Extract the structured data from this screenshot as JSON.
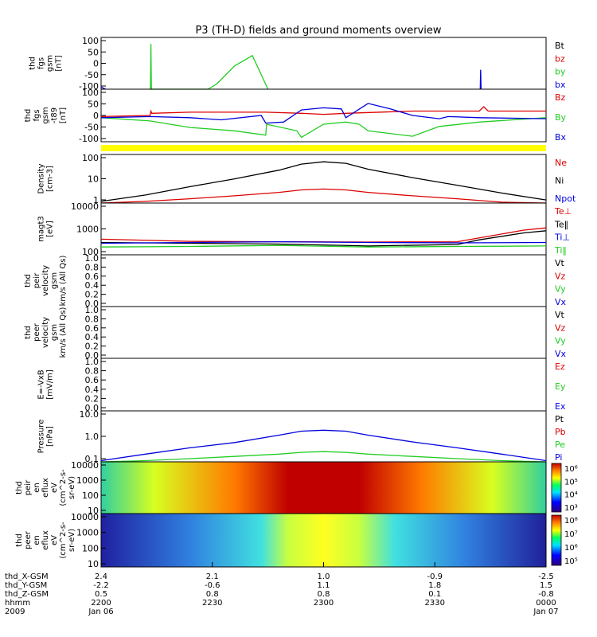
{
  "title": "P3 (TH-D) fields and ground moments overview",
  "colors": {
    "black": "#000000",
    "red": "#dd0000",
    "green": "#22cc22",
    "blue": "#0000dd",
    "yellow": "#ffff00"
  },
  "chart_data": [
    {
      "type": "line",
      "panel": "fgs",
      "ylabel": [
        "thd",
        "fgs",
        "gsm",
        "[nT]"
      ],
      "ylim": [
        -100,
        100
      ],
      "yticks": [
        "100",
        "50",
        "0",
        "-50",
        "-100"
      ],
      "legend": [
        {
          "name": "Bt",
          "color": "black"
        },
        {
          "name": "bz",
          "color": "red"
        },
        {
          "name": "by",
          "color": "green"
        },
        {
          "name": "bx",
          "color": "blue"
        }
      ],
      "series": [
        {
          "name": "by",
          "color": "green",
          "x": [
            0.11,
            0.24,
            0.26,
            0.3,
            0.34,
            0.375
          ],
          "y": [
            -100,
            -100,
            -80,
            -10,
            30,
            -100
          ]
        },
        {
          "name": "by-spike",
          "color": "green",
          "x": [
            0.111,
            0.112,
            0.113
          ],
          "y": [
            -100,
            75,
            -100
          ]
        },
        {
          "name": "bx-spike",
          "color": "blue",
          "x": [
            0.852,
            0.853,
            0.854
          ],
          "y": [
            -100,
            -25,
            -100
          ]
        },
        {
          "name": "bx-edge",
          "color": "blue",
          "x": [
            0.0,
            0.01
          ],
          "y": [
            -92,
            -100
          ]
        }
      ]
    },
    {
      "type": "line",
      "panel": "fgs-t89",
      "ylabel": [
        "thd",
        "fgs",
        "gsm",
        "-t89",
        "[nT]"
      ],
      "ylim": [
        -120,
        120
      ],
      "yticks": [
        "100",
        "50",
        "0",
        "-50",
        "-100"
      ],
      "legend": [
        {
          "name": "Bz",
          "color": "red"
        },
        {
          "name": "By",
          "color": "green"
        },
        {
          "name": "Bx",
          "color": "blue"
        }
      ],
      "series": [
        {
          "name": "Bz",
          "color": "red",
          "x": [
            0,
            0.11,
            0.112,
            0.114,
            0.2,
            0.37,
            0.45,
            0.5,
            0.55,
            0.7,
            0.85,
            0.86,
            0.87,
            1
          ],
          "y": [
            -5,
            0,
            20,
            10,
            15,
            15,
            10,
            5,
            10,
            20,
            20,
            40,
            20,
            20
          ]
        },
        {
          "name": "By",
          "color": "green",
          "x": [
            0,
            0.11,
            0.2,
            0.3,
            0.37,
            0.372,
            0.44,
            0.45,
            0.5,
            0.55,
            0.58,
            0.6,
            0.7,
            0.76,
            0.85,
            1
          ],
          "y": [
            -10,
            -25,
            -55,
            -70,
            -90,
            -40,
            -70,
            -100,
            -40,
            -30,
            -40,
            -70,
            -95,
            -50,
            -30,
            -10
          ]
        },
        {
          "name": "Bx",
          "color": "blue",
          "x": [
            0,
            0.11,
            0.2,
            0.27,
            0.36,
            0.37,
            0.41,
            0.45,
            0.5,
            0.54,
            0.55,
            0.6,
            0.65,
            0.7,
            0.76,
            0.78,
            0.85,
            1
          ],
          "y": [
            -10,
            -5,
            -10,
            -20,
            0,
            -35,
            -30,
            25,
            35,
            30,
            -10,
            55,
            30,
            0,
            -15,
            -5,
            -10,
            -15
          ]
        }
      ]
    },
    {
      "type": "bar",
      "panel": "flag",
      "color": "yellow"
    },
    {
      "type": "line",
      "panel": "density",
      "ylabel": [
        "Density",
        "[cm-3]"
      ],
      "ylog": true,
      "ylim": [
        0.5,
        100
      ],
      "yticks": [
        "100",
        "10",
        "1"
      ],
      "legend": [
        {
          "name": "Ne",
          "color": "red"
        },
        {
          "name": "Ni",
          "color": "black"
        },
        {
          "name": "Npot",
          "color": "blue"
        }
      ],
      "series": [
        {
          "name": "Ni",
          "color": "black",
          "x": [
            0,
            0.1,
            0.2,
            0.3,
            0.4,
            0.45,
            0.5,
            0.55,
            0.6,
            0.7,
            0.8,
            0.9,
            1
          ],
          "y": [
            0.6,
            1.2,
            3,
            7,
            18,
            35,
            45,
            38,
            20,
            8,
            3.5,
            1.5,
            0.7
          ]
        },
        {
          "name": "Ne",
          "color": "red",
          "x": [
            0,
            0.1,
            0.2,
            0.3,
            0.4,
            0.45,
            0.5,
            0.55,
            0.6,
            0.7,
            0.8,
            0.9,
            1
          ],
          "y": [
            0.5,
            0.6,
            0.8,
            1.1,
            1.6,
            2.1,
            2.3,
            2.1,
            1.6,
            1.1,
            0.8,
            0.55,
            0.5
          ]
        }
      ]
    },
    {
      "type": "line",
      "panel": "temperature",
      "ylabel": [
        "magt3",
        "[eV]"
      ],
      "ylog": true,
      "ylim": [
        100,
        10000
      ],
      "yticks": [
        "10000",
        "1000",
        "100"
      ],
      "legend": [
        {
          "name": "Te⊥",
          "color": "red"
        },
        {
          "name": "Te‖",
          "color": "black"
        },
        {
          "name": "Ti⊥",
          "color": "blue"
        },
        {
          "name": "Ti‖",
          "color": "green"
        }
      ],
      "series": [
        {
          "name": "Te⊥",
          "color": "red",
          "x": [
            0,
            0.2,
            0.4,
            0.6,
            0.8,
            0.88,
            0.95,
            1
          ],
          "y": [
            400,
            330,
            320,
            310,
            320,
            550,
            900,
            1100
          ]
        },
        {
          "name": "Te‖",
          "color": "black",
          "x": [
            0,
            0.2,
            0.4,
            0.6,
            0.8,
            0.85,
            0.95,
            1
          ],
          "y": [
            300,
            280,
            260,
            220,
            250,
            380,
            700,
            850
          ]
        },
        {
          "name": "Ti⊥",
          "color": "blue",
          "x": [
            0,
            0.2,
            0.4,
            0.6,
            0.8,
            1
          ],
          "y": [
            280,
            300,
            320,
            300,
            290,
            300
          ]
        },
        {
          "name": "Ti‖",
          "color": "green",
          "x": [
            0,
            0.2,
            0.4,
            0.6,
            0.8,
            1
          ],
          "y": [
            200,
            210,
            230,
            200,
            210,
            220
          ]
        }
      ]
    },
    {
      "type": "line",
      "panel": "peir-velocity",
      "ylabel": [
        "thd",
        "peir",
        "velocity",
        "gsm",
        "km/s (All Qs)"
      ],
      "ylim": [
        0,
        1
      ],
      "yticks": [
        "1.0",
        "0.8",
        "0.6",
        "0.4",
        "0.2",
        "0.0"
      ],
      "legend": [
        {
          "name": "Vt",
          "color": "black"
        },
        {
          "name": "Vz",
          "color": "red"
        },
        {
          "name": "Vy",
          "color": "green"
        },
        {
          "name": "Vx",
          "color": "blue"
        }
      ],
      "series": []
    },
    {
      "type": "line",
      "panel": "peer-velocity",
      "ylabel": [
        "thd",
        "peer",
        "velocity",
        "gsm",
        "km/s (All Qs)"
      ],
      "ylim": [
        0,
        1
      ],
      "yticks": [
        "1.0",
        "0.8",
        "0.6",
        "0.4",
        "0.2",
        "0.0"
      ],
      "legend": [
        {
          "name": "Vt",
          "color": "black"
        },
        {
          "name": "Vz",
          "color": "red"
        },
        {
          "name": "Vy",
          "color": "green"
        },
        {
          "name": "Vx",
          "color": "blue"
        }
      ],
      "series": []
    },
    {
      "type": "line",
      "panel": "e-field",
      "ylabel": [
        "E=-VxB",
        "[mV/m]"
      ],
      "ylim": [
        0,
        1
      ],
      "yticks": [
        "1.0",
        "0.8",
        "0.6",
        "0.4",
        "0.2",
        "0.0"
      ],
      "legend": [
        {
          "name": "Ez",
          "color": "red"
        },
        {
          "name": "Ey",
          "color": "green"
        },
        {
          "name": "Ex",
          "color": "blue"
        }
      ],
      "series": []
    },
    {
      "type": "line",
      "panel": "pressure",
      "ylabel": [
        "Pressure",
        "[nPa]"
      ],
      "ylog": true,
      "ylim": [
        0.03,
        20
      ],
      "yticks": [
        "10.0",
        "1.0",
        "0.1"
      ],
      "legend": [
        {
          "name": "Pt",
          "color": "black"
        },
        {
          "name": "Pb",
          "color": "red"
        },
        {
          "name": "Pe",
          "color": "green"
        },
        {
          "name": "Pi",
          "color": "blue"
        }
      ],
      "series": [
        {
          "name": "Pi",
          "color": "blue",
          "x": [
            0,
            0.1,
            0.2,
            0.3,
            0.4,
            0.45,
            0.5,
            0.55,
            0.6,
            0.7,
            0.8,
            0.9,
            1
          ],
          "y": [
            0.035,
            0.08,
            0.18,
            0.35,
            0.9,
            1.5,
            1.7,
            1.5,
            0.9,
            0.38,
            0.18,
            0.08,
            0.035
          ]
        },
        {
          "name": "Pe",
          "color": "green",
          "x": [
            0,
            0.1,
            0.2,
            0.3,
            0.4,
            0.45,
            0.5,
            0.55,
            0.6,
            0.7,
            0.8,
            0.9,
            1
          ],
          "y": [
            0.03,
            0.035,
            0.045,
            0.06,
            0.08,
            0.1,
            0.11,
            0.1,
            0.08,
            0.06,
            0.045,
            0.035,
            0.03
          ]
        }
      ]
    },
    {
      "type": "heatmap",
      "panel": "peir-eflux",
      "ylabel": [
        "thd",
        "peir",
        "en",
        "eflux",
        "eV",
        "(cm^2-s-",
        "sr-eV)"
      ],
      "yticks": [
        "10000",
        "1000",
        "100",
        "10"
      ],
      "colorbar_ticks": [
        "10⁶",
        "10⁵",
        "10⁴",
        "10³"
      ]
    },
    {
      "type": "heatmap",
      "panel": "peer-eflux",
      "ylabel": [
        "thd",
        "peer",
        "en",
        "eflux",
        "eV",
        "(cm^2-s-",
        "sr-eV)"
      ],
      "yticks": [
        "10000",
        "1000",
        "100",
        "10"
      ],
      "colorbar_ticks": [
        "10⁸",
        "10⁷",
        "10⁶",
        "10⁵"
      ]
    }
  ],
  "xaxis": {
    "row_labels": [
      "thd_X-GSM",
      "thd_Y-GSM",
      "thd_Z-GSM",
      "hhmm",
      "2009"
    ],
    "columns": [
      {
        "pos": 0.0,
        "rows": [
          "2.4",
          "-2.2",
          "0.5",
          "2200",
          "Jan 06"
        ]
      },
      {
        "pos": 0.25,
        "rows": [
          "2.1",
          "-0.6",
          "0.8",
          "2230",
          ""
        ]
      },
      {
        "pos": 0.5,
        "rows": [
          "1.0",
          "1.1",
          "0.8",
          "2300",
          ""
        ]
      },
      {
        "pos": 0.75,
        "rows": [
          "-0.9",
          "1.8",
          "0.1",
          "2330",
          ""
        ]
      },
      {
        "pos": 1.0,
        "rows": [
          "-2.5",
          "1.5",
          "-0.8",
          "0000",
          "Jan 07"
        ]
      }
    ]
  }
}
